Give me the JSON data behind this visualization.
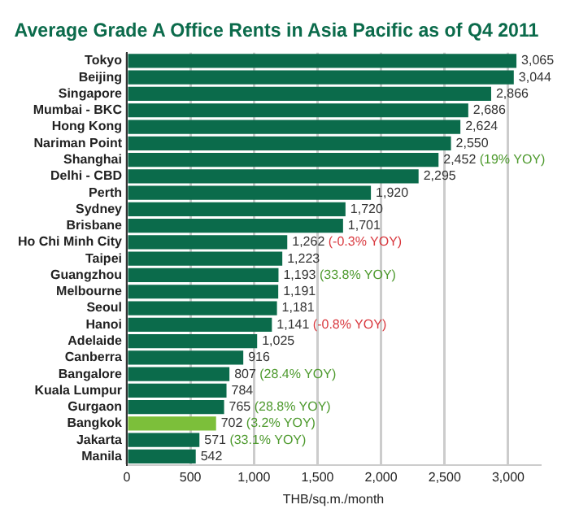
{
  "chart_data": {
    "type": "bar",
    "orientation": "horizontal",
    "title": "Average Grade A Office Rents in Asia Pacific as of Q4 2011",
    "xlabel": "THB/sq.m./month",
    "categories": [
      "Tokyo",
      "Beijing",
      "Singapore",
      "Mumbai - BKC",
      "Hong Kong",
      "Nariman Point",
      "Shanghai",
      "Delhi - CBD",
      "Perth",
      "Sydney",
      "Brisbane",
      "Ho Chi Minh City",
      "Taipei",
      "Guangzhou",
      "Melbourne",
      "Seoul",
      "Hanoi",
      "Adelaide",
      "Canberra",
      "Bangalore",
      "Kuala Lumpur",
      "Gurgaon",
      "Bangkok",
      "Jakarta",
      "Manila"
    ],
    "values": [
      3065,
      3044,
      2866,
      2686,
      2624,
      2550,
      2452,
      2295,
      1920,
      1720,
      1701,
      1262,
      1223,
      1193,
      1191,
      1181,
      1141,
      1025,
      916,
      807,
      784,
      765,
      702,
      571,
      542
    ],
    "value_labels": [
      "3,065",
      "3,044",
      "2,866",
      "2,686",
      "2,624",
      "2,550",
      "2,452 (19% YOY)",
      "2,295",
      "1,920",
      "1,720",
      "1,701",
      "1,262 (-0.3% YOY)",
      "1,223",
      "1,193 (33.8% YOY)",
      "1,191",
      "1,181",
      "1,141 (-0.8% YOY)",
      "1,025",
      "916",
      "807 (28.4% YOY)",
      "784",
      "765 (28.8% YOY)",
      "702 (3.2% YOY)",
      "571 (33.1% YOY)",
      "542"
    ],
    "colors": [
      "#0b6b4b",
      "#0b6b4b",
      "#0b6b4b",
      "#0b6b4b",
      "#0b6b4b",
      "#0b6b4b",
      "#0b6b4b",
      "#0b6b4b",
      "#0b6b4b",
      "#0b6b4b",
      "#0b6b4b",
      "#0b6b4b",
      "#0b6b4b",
      "#0b6b4b",
      "#0b6b4b",
      "#0b6b4b",
      "#0b6b4b",
      "#0b6b4b",
      "#0b6b4b",
      "#0b6b4b",
      "#0b6b4b",
      "#0b6b4b",
      "#7cbf3a",
      "#0b6b4b",
      "#0b6b4b"
    ],
    "xlim": [
      0,
      3250
    ],
    "xticks": [
      {
        "value": 0,
        "label": "0"
      },
      {
        "value": 500,
        "label": "500"
      },
      {
        "value": 1000,
        "label": "1,000"
      },
      {
        "value": 1500,
        "label": "1,500"
      },
      {
        "value": 2000,
        "label": "2,000"
      },
      {
        "value": 2500,
        "label": "2,500"
      },
      {
        "value": 3000,
        "label": "3,000"
      }
    ],
    "grid": "x",
    "legend": false
  }
}
